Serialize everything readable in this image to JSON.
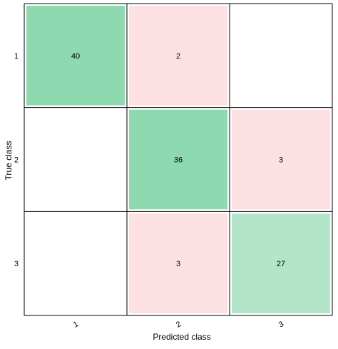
{
  "chart_data": {
    "type": "heatmap",
    "title": "",
    "xlabel": "Predicted class",
    "ylabel": "True class",
    "x_categories": [
      "1",
      "2",
      "3"
    ],
    "y_categories": [
      "1",
      "2",
      "3"
    ],
    "cells": [
      {
        "row": 0,
        "col": 0,
        "value": 40,
        "label": "40",
        "kind": "correct"
      },
      {
        "row": 0,
        "col": 1,
        "value": 2,
        "label": "2",
        "kind": "error"
      },
      {
        "row": 0,
        "col": 2,
        "value": 0,
        "label": "",
        "kind": "empty"
      },
      {
        "row": 1,
        "col": 0,
        "value": 0,
        "label": "",
        "kind": "empty"
      },
      {
        "row": 1,
        "col": 1,
        "value": 36,
        "label": "36",
        "kind": "correct"
      },
      {
        "row": 1,
        "col": 2,
        "value": 3,
        "label": "3",
        "kind": "error"
      },
      {
        "row": 2,
        "col": 0,
        "value": 0,
        "label": "",
        "kind": "empty"
      },
      {
        "row": 2,
        "col": 1,
        "value": 3,
        "label": "3",
        "kind": "error"
      },
      {
        "row": 2,
        "col": 2,
        "value": 27,
        "label": "27",
        "kind": "correct"
      }
    ],
    "colors": {
      "correct_dark": "#8fd9b0",
      "correct_light": "#b3e6c9",
      "error": "#fde0e1",
      "empty": "#ffffff",
      "grid": "#000000",
      "cell_inset": "#ffffff"
    },
    "grid": true,
    "legend": "none"
  }
}
